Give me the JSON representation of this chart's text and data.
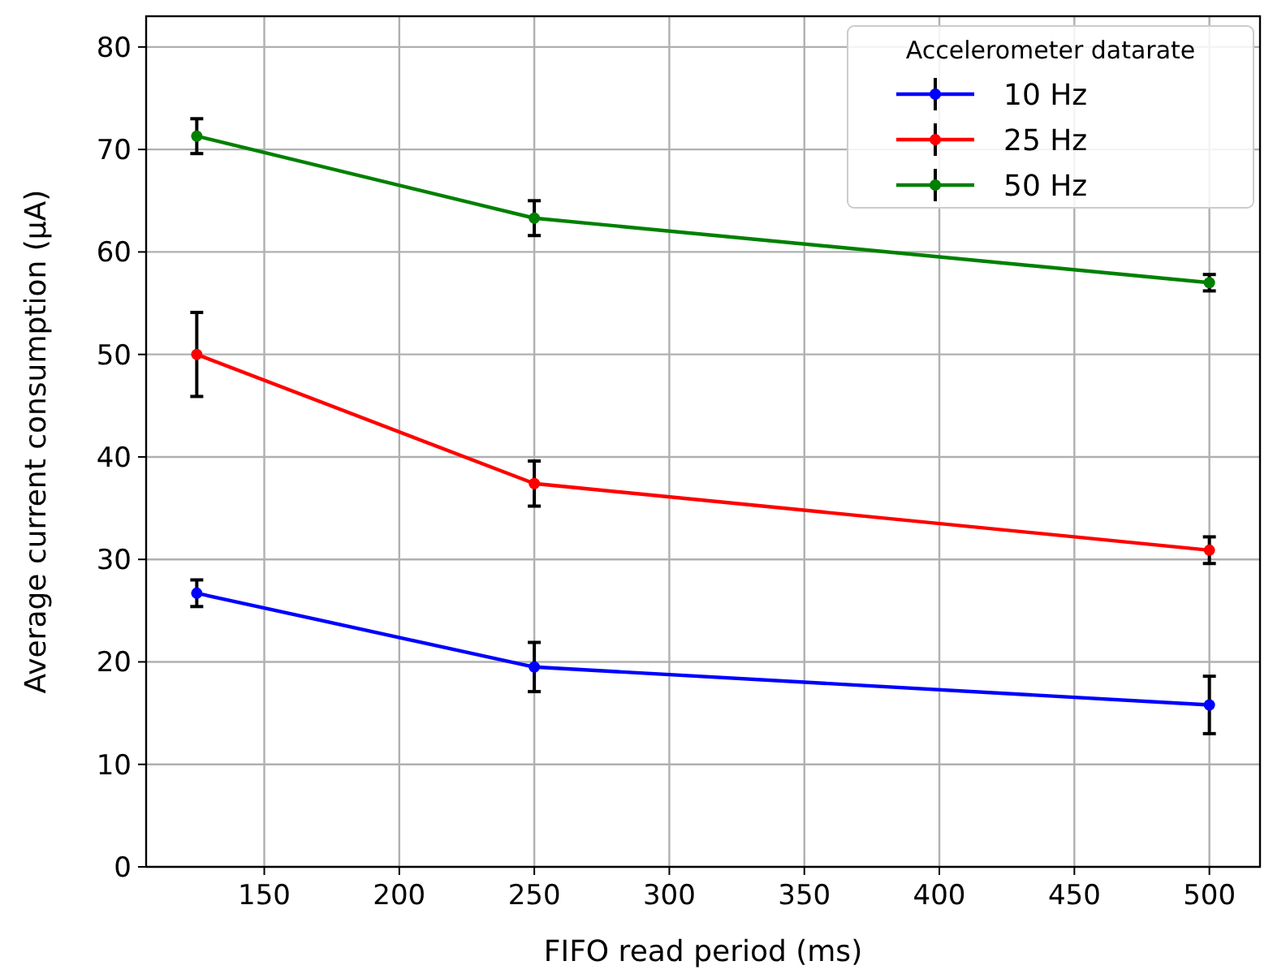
{
  "chart_data": {
    "type": "line",
    "xlabel": "FIFO read period (ms)",
    "ylabel": "Average current consumption (μA)",
    "legend_title": "Accelerometer datarate",
    "x": [
      125,
      250,
      500
    ],
    "series": [
      {
        "name": "10 Hz",
        "color": "#0000ff",
        "values": [
          26.7,
          19.5,
          15.8
        ],
        "errors": [
          1.3,
          2.4,
          2.8
        ]
      },
      {
        "name": "25 Hz",
        "color": "#ff0000",
        "values": [
          50,
          37.4,
          30.9
        ],
        "errors": [
          4.1,
          2.2,
          1.3
        ]
      },
      {
        "name": "50 Hz",
        "color": "#008000",
        "values": [
          71.3,
          63.3,
          57.0
        ],
        "errors": [
          1.7,
          1.7,
          0.8
        ]
      }
    ],
    "xlim": [
      106.25,
      518.75
    ],
    "xticks": [
      150,
      200,
      250,
      300,
      350,
      400,
      450,
      500
    ],
    "ylim": [
      0,
      83
    ],
    "yticks": [
      0,
      10,
      20,
      30,
      40,
      50,
      60,
      70,
      80
    ],
    "grid": true,
    "legend": "top right",
    "marker": "circle",
    "line_style": "solid"
  }
}
